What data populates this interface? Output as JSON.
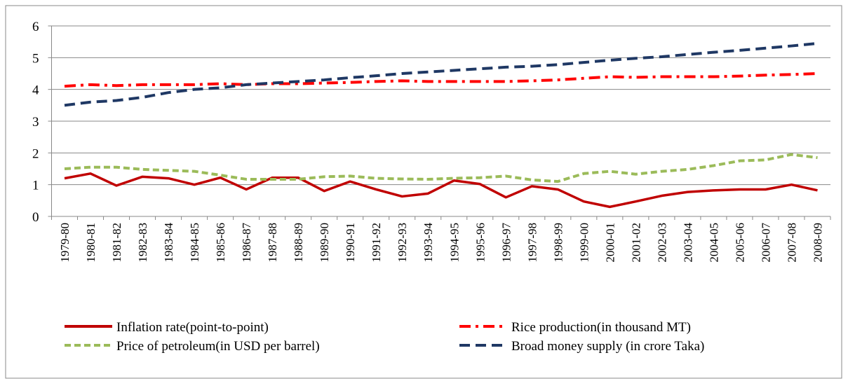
{
  "chart_data": {
    "type": "line",
    "categories": [
      "1979-80",
      "1980-81",
      "1981-82",
      "1982-83",
      "1983-84",
      "1984-85",
      "1985-86",
      "1986-87",
      "1987-88",
      "1988-89",
      "1989-90",
      "1990-91",
      "1991-92",
      "1992-93",
      "1993-94",
      "1994-95",
      "1995-96",
      "1996-97",
      "1997-98",
      "1998-99",
      "1999-00",
      "2000-01",
      "2001-02",
      "2002-03",
      "2003-04",
      "2004-05",
      "2005-06",
      "2006-07",
      "2007-08",
      "2008-09"
    ],
    "series": [
      {
        "name": "Inflation rate(point-to-point)",
        "color": "#c00000",
        "values": [
          1.2,
          1.35,
          0.97,
          1.25,
          1.2,
          1.0,
          1.22,
          0.85,
          1.22,
          1.22,
          0.8,
          1.1,
          0.85,
          0.63,
          0.72,
          1.13,
          1.02,
          0.6,
          0.95,
          0.85,
          0.47,
          0.3,
          0.47,
          0.65,
          0.77,
          0.82,
          0.85,
          0.85,
          1.0,
          0.82
        ]
      },
      {
        "name": "Rice production(in thousand MT)",
        "color": "#ff0000",
        "values": [
          4.1,
          4.15,
          4.12,
          4.15,
          4.15,
          4.15,
          4.18,
          4.15,
          4.18,
          4.18,
          4.2,
          4.22,
          4.25,
          4.27,
          4.25,
          4.25,
          4.25,
          4.25,
          4.27,
          4.3,
          4.35,
          4.4,
          4.38,
          4.4,
          4.4,
          4.4,
          4.42,
          4.45,
          4.47,
          4.5
        ]
      },
      {
        "name": "Price of petroleum(in USD per barrel)",
        "color": "#9bbb59",
        "values": [
          1.5,
          1.55,
          1.55,
          1.48,
          1.45,
          1.42,
          1.3,
          1.17,
          1.17,
          1.17,
          1.25,
          1.27,
          1.2,
          1.18,
          1.17,
          1.2,
          1.22,
          1.27,
          1.15,
          1.1,
          1.35,
          1.42,
          1.33,
          1.42,
          1.48,
          1.6,
          1.75,
          1.78,
          1.95,
          1.85
        ]
      },
      {
        "name": "Broad money supply (in crore Taka)",
        "color": "#1f3864",
        "values": [
          3.5,
          3.6,
          3.65,
          3.75,
          3.9,
          4.0,
          4.05,
          4.15,
          4.2,
          4.25,
          4.3,
          4.37,
          4.43,
          4.5,
          4.55,
          4.6,
          4.65,
          4.7,
          4.73,
          4.78,
          4.85,
          4.92,
          4.98,
          5.03,
          5.1,
          5.17,
          5.23,
          5.3,
          5.37,
          5.45
        ]
      }
    ],
    "ylim": [
      0,
      6
    ],
    "yticks": [
      0,
      1,
      2,
      3,
      4,
      5,
      6
    ],
    "grid": true
  }
}
